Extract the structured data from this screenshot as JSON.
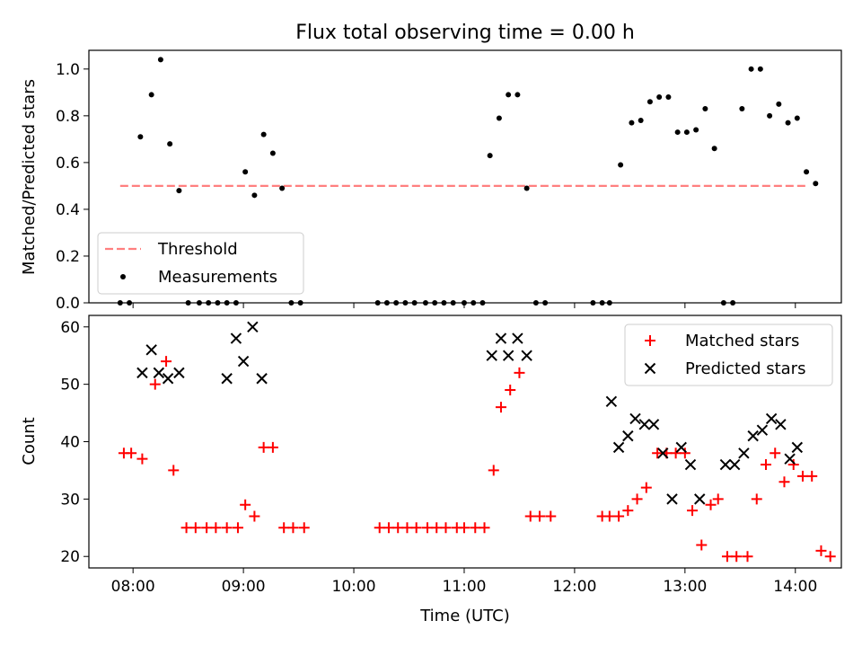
{
  "chart_data": [
    {
      "type": "scatter",
      "title": "Flux total observing time = 0.00 h",
      "xlabel": "",
      "ylabel": "Matched/Predicted stars",
      "ylim": [
        0,
        1.08
      ],
      "yticks": [
        "0.0",
        "0.2",
        "0.4",
        "0.6",
        "0.8",
        "1.0"
      ],
      "grid": false,
      "legend_position": "lower left",
      "threshold": {
        "name": "Threshold",
        "value": 0.5,
        "x_start": "07:53",
        "x_end": "14:07",
        "color": "#ff7f7f"
      },
      "series": [
        {
          "name": "Measurements",
          "color": "#000000",
          "marker": "dot",
          "points": [
            [
              "07:53",
              0.0
            ],
            [
              "07:58",
              0.0
            ],
            [
              "08:04",
              0.71
            ],
            [
              "08:10",
              0.89
            ],
            [
              "08:15",
              1.04
            ],
            [
              "08:20",
              0.68
            ],
            [
              "08:25",
              0.48
            ],
            [
              "08:30",
              0.0
            ],
            [
              "08:36",
              0.0
            ],
            [
              "08:41",
              0.0
            ],
            [
              "08:46",
              0.0
            ],
            [
              "08:51",
              0.0
            ],
            [
              "08:56",
              0.0
            ],
            [
              "09:01",
              0.56
            ],
            [
              "09:06",
              0.46
            ],
            [
              "09:11",
              0.72
            ],
            [
              "09:16",
              0.64
            ],
            [
              "09:21",
              0.49
            ],
            [
              "09:26",
              0.0
            ],
            [
              "09:31",
              0.0
            ],
            [
              "10:13",
              0.0
            ],
            [
              "10:18",
              0.0
            ],
            [
              "10:23",
              0.0
            ],
            [
              "10:28",
              0.0
            ],
            [
              "10:33",
              0.0
            ],
            [
              "10:39",
              0.0
            ],
            [
              "10:44",
              0.0
            ],
            [
              "10:49",
              0.0
            ],
            [
              "10:54",
              0.0
            ],
            [
              "11:00",
              0.0
            ],
            [
              "11:05",
              0.0
            ],
            [
              "11:10",
              0.0
            ],
            [
              "11:14",
              0.63
            ],
            [
              "11:19",
              0.79
            ],
            [
              "11:24",
              0.89
            ],
            [
              "11:29",
              0.89
            ],
            [
              "11:34",
              0.49
            ],
            [
              "11:39",
              0.0
            ],
            [
              "11:44",
              0.0
            ],
            [
              "12:10",
              0.0
            ],
            [
              "12:15",
              0.0
            ],
            [
              "12:19",
              0.0
            ],
            [
              "12:25",
              0.59
            ],
            [
              "12:31",
              0.77
            ],
            [
              "12:36",
              0.78
            ],
            [
              "12:41",
              0.86
            ],
            [
              "12:46",
              0.88
            ],
            [
              "12:51",
              0.88
            ],
            [
              "12:56",
              0.73
            ],
            [
              "13:01",
              0.73
            ],
            [
              "13:06",
              0.74
            ],
            [
              "13:11",
              0.83
            ],
            [
              "13:16",
              0.66
            ],
            [
              "13:21",
              0.0
            ],
            [
              "13:26",
              0.0
            ],
            [
              "13:31",
              0.83
            ],
            [
              "13:36",
              1.0
            ],
            [
              "13:41",
              1.0
            ],
            [
              "13:46",
              0.8
            ],
            [
              "13:51",
              0.85
            ],
            [
              "13:56",
              0.77
            ],
            [
              "14:01",
              0.79
            ],
            [
              "14:06",
              0.56
            ],
            [
              "14:11",
              0.51
            ]
          ]
        }
      ]
    },
    {
      "type": "scatter",
      "title": "",
      "xlabel": "Time (UTC)",
      "ylabel": "Count",
      "ylim": [
        18,
        62
      ],
      "yticks": [
        "20",
        "30",
        "40",
        "50",
        "60"
      ],
      "xlim": [
        "07:36",
        "14:25"
      ],
      "xticks": [
        "08:00",
        "09:00",
        "10:00",
        "11:00",
        "12:00",
        "13:00",
        "14:00"
      ],
      "grid": false,
      "legend_position": "upper right",
      "series": [
        {
          "name": "Matched stars",
          "color": "#ff0000",
          "marker": "plus",
          "points": [
            [
              "07:55",
              38
            ],
            [
              "07:59",
              38
            ],
            [
              "08:05",
              37
            ],
            [
              "08:12",
              50
            ],
            [
              "08:18",
              54
            ],
            [
              "08:22",
              35
            ],
            [
              "08:29",
              25
            ],
            [
              "08:34",
              25
            ],
            [
              "08:40",
              25
            ],
            [
              "08:45",
              25
            ],
            [
              "08:51",
              25
            ],
            [
              "08:57",
              25
            ],
            [
              "09:01",
              29
            ],
            [
              "09:06",
              27
            ],
            [
              "09:11",
              39
            ],
            [
              "09:16",
              39
            ],
            [
              "09:22",
              25
            ],
            [
              "09:27",
              25
            ],
            [
              "09:33",
              25
            ],
            [
              "10:14",
              25
            ],
            [
              "10:19",
              25
            ],
            [
              "10:24",
              25
            ],
            [
              "10:29",
              25
            ],
            [
              "10:34",
              25
            ],
            [
              "10:40",
              25
            ],
            [
              "10:45",
              25
            ],
            [
              "10:50",
              25
            ],
            [
              "10:56",
              25
            ],
            [
              "11:00",
              25
            ],
            [
              "11:06",
              25
            ],
            [
              "11:11",
              25
            ],
            [
              "11:16",
              35
            ],
            [
              "11:20",
              46
            ],
            [
              "11:25",
              49
            ],
            [
              "11:30",
              52
            ],
            [
              "11:36",
              27
            ],
            [
              "11:41",
              27
            ],
            [
              "11:47",
              27
            ],
            [
              "12:15",
              27
            ],
            [
              "12:19",
              27
            ],
            [
              "12:24",
              27
            ],
            [
              "12:29",
              28
            ],
            [
              "12:34",
              30
            ],
            [
              "12:39",
              32
            ],
            [
              "12:45",
              38
            ],
            [
              "12:50",
              38
            ],
            [
              "12:55",
              38
            ],
            [
              "13:00",
              38
            ],
            [
              "13:04",
              28
            ],
            [
              "13:09",
              22
            ],
            [
              "13:14",
              29
            ],
            [
              "13:18",
              30
            ],
            [
              "13:23",
              20
            ],
            [
              "13:28",
              20
            ],
            [
              "13:34",
              20
            ],
            [
              "13:39",
              30
            ],
            [
              "13:44",
              36
            ],
            [
              "13:49",
              38
            ],
            [
              "13:54",
              33
            ],
            [
              "13:59",
              36
            ],
            [
              "14:04",
              34
            ],
            [
              "14:09",
              34
            ],
            [
              "14:14",
              21
            ],
            [
              "14:19",
              20
            ]
          ]
        },
        {
          "name": "Predicted stars",
          "color": "#000000",
          "marker": "x",
          "points": [
            [
              "08:05",
              52
            ],
            [
              "08:10",
              56
            ],
            [
              "08:14",
              52
            ],
            [
              "08:19",
              51
            ],
            [
              "08:25",
              52
            ],
            [
              "08:51",
              51
            ],
            [
              "08:56",
              58
            ],
            [
              "09:00",
              54
            ],
            [
              "09:05",
              60
            ],
            [
              "09:10",
              51
            ],
            [
              "11:15",
              55
            ],
            [
              "11:20",
              58
            ],
            [
              "11:24",
              55
            ],
            [
              "11:29",
              58
            ],
            [
              "11:34",
              55
            ],
            [
              "12:20",
              47
            ],
            [
              "12:24",
              39
            ],
            [
              "12:29",
              41
            ],
            [
              "12:33",
              44
            ],
            [
              "12:38",
              43
            ],
            [
              "12:43",
              43
            ],
            [
              "12:48",
              38
            ],
            [
              "12:53",
              30
            ],
            [
              "12:58",
              39
            ],
            [
              "13:03",
              36
            ],
            [
              "13:08",
              30
            ],
            [
              "13:22",
              36
            ],
            [
              "13:27",
              36
            ],
            [
              "13:32",
              38
            ],
            [
              "13:37",
              41
            ],
            [
              "13:42",
              42
            ],
            [
              "13:47",
              44
            ],
            [
              "13:52",
              43
            ],
            [
              "13:57",
              37
            ],
            [
              "14:01",
              39
            ]
          ]
        }
      ]
    }
  ]
}
